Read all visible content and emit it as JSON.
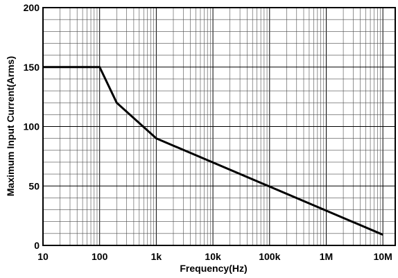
{
  "chart_data": {
    "type": "line",
    "title": "",
    "xlabel": "Frequency(Hz)",
    "ylabel": "Maximum Input Current(Arms)",
    "x_scale": "log",
    "xlim": [
      10,
      14000000
    ],
    "ylim": [
      0,
      200
    ],
    "x_ticks": [
      {
        "value": 10,
        "label": "10"
      },
      {
        "value": 100,
        "label": "100"
      },
      {
        "value": 1000,
        "label": "1k"
      },
      {
        "value": 10000,
        "label": "10k"
      },
      {
        "value": 100000,
        "label": "100k"
      },
      {
        "value": 1000000,
        "label": "1M"
      },
      {
        "value": 10000000,
        "label": "10M"
      }
    ],
    "y_ticks": [
      {
        "value": 0,
        "label": "0"
      },
      {
        "value": 50,
        "label": "50"
      },
      {
        "value": 100,
        "label": "100"
      },
      {
        "value": 150,
        "label": "150"
      },
      {
        "value": 200,
        "label": "200"
      }
    ],
    "y_minor_step": 10,
    "grid": true,
    "legend": "none",
    "series": [
      {
        "color": "#000000",
        "points": [
          {
            "x": 10,
            "y": 150
          },
          {
            "x": 100,
            "y": 150
          },
          {
            "x": 200,
            "y": 120
          },
          {
            "x": 1000,
            "y": 90
          },
          {
            "x": 10000000,
            "y": 9
          }
        ]
      }
    ]
  }
}
